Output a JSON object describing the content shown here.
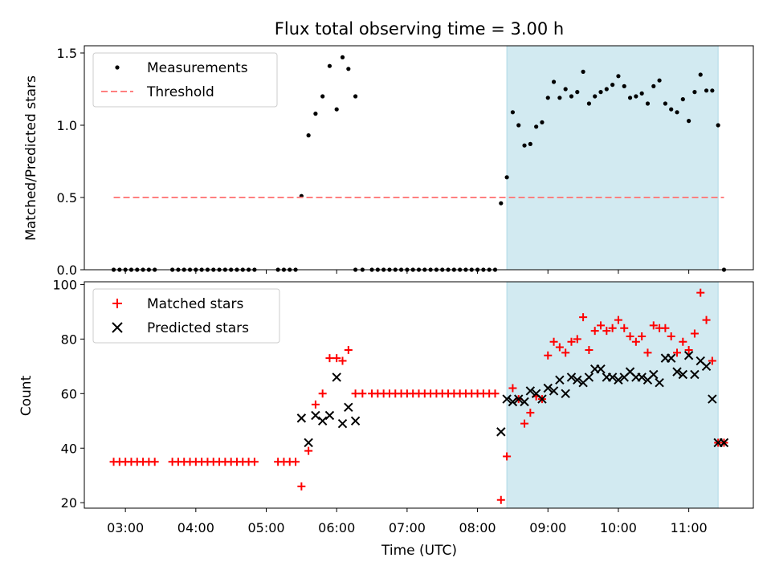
{
  "chart_data": [
    {
      "type": "scatter",
      "title": "Flux total observing time = 3.00 h",
      "ylabel": "Matched/Predicted stars",
      "xlabel": "",
      "xlim": [
        "02:25",
        "11:55"
      ],
      "ylim": [
        0,
        1.55
      ],
      "yticks": [
        "0.0",
        "0.5",
        "1.0",
        "1.5"
      ],
      "legend_position": "top-left",
      "highlight_span": [
        "08:25",
        "11:25"
      ],
      "highlight_color": "#add8e6",
      "series": [
        {
          "name": "Measurements",
          "kind": "points",
          "color": "#000000",
          "points": [
            [
              "02:50",
              0
            ],
            [
              "02:55",
              0
            ],
            [
              "03:00",
              0
            ],
            [
              "03:05",
              0
            ],
            [
              "03:10",
              0
            ],
            [
              "03:15",
              0
            ],
            [
              "03:20",
              0
            ],
            [
              "03:25",
              0
            ],
            [
              "03:40",
              0
            ],
            [
              "03:45",
              0
            ],
            [
              "03:50",
              0
            ],
            [
              "03:55",
              0
            ],
            [
              "04:00",
              0
            ],
            [
              "04:05",
              0
            ],
            [
              "04:10",
              0
            ],
            [
              "04:15",
              0
            ],
            [
              "04:20",
              0
            ],
            [
              "04:25",
              0
            ],
            [
              "04:30",
              0
            ],
            [
              "04:35",
              0
            ],
            [
              "04:40",
              0
            ],
            [
              "04:45",
              0
            ],
            [
              "04:50",
              0
            ],
            [
              "05:10",
              0
            ],
            [
              "05:15",
              0
            ],
            [
              "05:20",
              0
            ],
            [
              "05:25",
              0
            ],
            [
              "05:30",
              0.51
            ],
            [
              "05:36",
              0.93
            ],
            [
              "05:42",
              1.08
            ],
            [
              "05:48",
              1.2
            ],
            [
              "05:54",
              1.41
            ],
            [
              "06:00",
              1.11
            ],
            [
              "06:05",
              1.47
            ],
            [
              "06:10",
              1.39
            ],
            [
              "06:16",
              1.2
            ],
            [
              "06:16",
              0
            ],
            [
              "06:22",
              0
            ],
            [
              "06:30",
              0
            ],
            [
              "06:35",
              0
            ],
            [
              "06:40",
              0
            ],
            [
              "06:45",
              0
            ],
            [
              "06:50",
              0
            ],
            [
              "06:55",
              0
            ],
            [
              "07:00",
              0
            ],
            [
              "07:05",
              0
            ],
            [
              "07:10",
              0
            ],
            [
              "07:15",
              0
            ],
            [
              "07:20",
              0
            ],
            [
              "07:25",
              0
            ],
            [
              "07:30",
              0
            ],
            [
              "07:35",
              0
            ],
            [
              "07:40",
              0
            ],
            [
              "07:45",
              0
            ],
            [
              "07:50",
              0
            ],
            [
              "07:55",
              0
            ],
            [
              "08:00",
              0
            ],
            [
              "08:05",
              0
            ],
            [
              "08:10",
              0
            ],
            [
              "08:15",
              0
            ],
            [
              "08:20",
              0.46
            ],
            [
              "08:25",
              0.64
            ],
            [
              "08:30",
              1.09
            ],
            [
              "08:35",
              1.0
            ],
            [
              "08:40",
              0.86
            ],
            [
              "08:45",
              0.87
            ],
            [
              "08:50",
              0.99
            ],
            [
              "08:55",
              1.02
            ],
            [
              "09:00",
              1.19
            ],
            [
              "09:05",
              1.3
            ],
            [
              "09:10",
              1.19
            ],
            [
              "09:15",
              1.25
            ],
            [
              "09:20",
              1.2
            ],
            [
              "09:25",
              1.23
            ],
            [
              "09:30",
              1.37
            ],
            [
              "09:35",
              1.15
            ],
            [
              "09:40",
              1.2
            ],
            [
              "09:45",
              1.23
            ],
            [
              "09:50",
              1.25
            ],
            [
              "09:55",
              1.28
            ],
            [
              "10:00",
              1.34
            ],
            [
              "10:05",
              1.27
            ],
            [
              "10:10",
              1.19
            ],
            [
              "10:15",
              1.2
            ],
            [
              "10:20",
              1.22
            ],
            [
              "10:25",
              1.15
            ],
            [
              "10:30",
              1.27
            ],
            [
              "10:35",
              1.31
            ],
            [
              "10:40",
              1.15
            ],
            [
              "10:45",
              1.11
            ],
            [
              "10:50",
              1.09
            ],
            [
              "10:55",
              1.18
            ],
            [
              "11:00",
              1.03
            ],
            [
              "11:05",
              1.23
            ],
            [
              "11:10",
              1.35
            ],
            [
              "11:15",
              1.24
            ],
            [
              "11:20",
              1.24
            ],
            [
              "11:25",
              1.0
            ],
            [
              "11:30",
              0
            ]
          ]
        },
        {
          "name": "Threshold",
          "kind": "dashed-line",
          "color": "#ff8080",
          "points": [
            [
              "02:50",
              0.5
            ],
            [
              "11:30",
              0.5
            ]
          ]
        }
      ]
    },
    {
      "type": "scatter",
      "title": "",
      "ylabel": "Count",
      "xlabel": "Time (UTC)",
      "xlim": [
        "02:25",
        "11:55"
      ],
      "ylim": [
        18,
        101
      ],
      "yticks": [
        "20",
        "40",
        "60",
        "80",
        "100"
      ],
      "xticks": [
        "03:00",
        "04:00",
        "05:00",
        "06:00",
        "07:00",
        "08:00",
        "09:00",
        "10:00",
        "11:00"
      ],
      "legend_position": "top-left",
      "highlight_span": [
        "08:25",
        "11:25"
      ],
      "highlight_color": "#add8e6",
      "series": [
        {
          "name": "Matched stars",
          "kind": "plus",
          "color": "#ff0000",
          "points": [
            [
              "02:50",
              35
            ],
            [
              "02:55",
              35
            ],
            [
              "03:00",
              35
            ],
            [
              "03:05",
              35
            ],
            [
              "03:10",
              35
            ],
            [
              "03:15",
              35
            ],
            [
              "03:20",
              35
            ],
            [
              "03:25",
              35
            ],
            [
              "03:40",
              35
            ],
            [
              "03:45",
              35
            ],
            [
              "03:50",
              35
            ],
            [
              "03:55",
              35
            ],
            [
              "04:00",
              35
            ],
            [
              "04:05",
              35
            ],
            [
              "04:10",
              35
            ],
            [
              "04:15",
              35
            ],
            [
              "04:20",
              35
            ],
            [
              "04:25",
              35
            ],
            [
              "04:30",
              35
            ],
            [
              "04:35",
              35
            ],
            [
              "04:40",
              35
            ],
            [
              "04:45",
              35
            ],
            [
              "04:50",
              35
            ],
            [
              "05:10",
              35
            ],
            [
              "05:15",
              35
            ],
            [
              "05:20",
              35
            ],
            [
              "05:25",
              35
            ],
            [
              "05:30",
              26
            ],
            [
              "05:36",
              39
            ],
            [
              "05:42",
              56
            ],
            [
              "05:48",
              60
            ],
            [
              "05:54",
              73
            ],
            [
              "06:00",
              73
            ],
            [
              "06:05",
              72
            ],
            [
              "06:10",
              76
            ],
            [
              "06:16",
              60
            ],
            [
              "06:22",
              60
            ],
            [
              "06:30",
              60
            ],
            [
              "06:35",
              60
            ],
            [
              "06:40",
              60
            ],
            [
              "06:45",
              60
            ],
            [
              "06:50",
              60
            ],
            [
              "06:55",
              60
            ],
            [
              "07:00",
              60
            ],
            [
              "07:05",
              60
            ],
            [
              "07:10",
              60
            ],
            [
              "07:15",
              60
            ],
            [
              "07:20",
              60
            ],
            [
              "07:25",
              60
            ],
            [
              "07:30",
              60
            ],
            [
              "07:35",
              60
            ],
            [
              "07:40",
              60
            ],
            [
              "07:45",
              60
            ],
            [
              "07:50",
              60
            ],
            [
              "07:55",
              60
            ],
            [
              "08:00",
              60
            ],
            [
              "08:05",
              60
            ],
            [
              "08:10",
              60
            ],
            [
              "08:15",
              60
            ],
            [
              "08:20",
              21
            ],
            [
              "08:25",
              37
            ],
            [
              "08:30",
              62
            ],
            [
              "08:35",
              58
            ],
            [
              "08:40",
              49
            ],
            [
              "08:45",
              53
            ],
            [
              "08:50",
              59
            ],
            [
              "08:55",
              58
            ],
            [
              "09:00",
              74
            ],
            [
              "09:05",
              79
            ],
            [
              "09:10",
              77
            ],
            [
              "09:15",
              75
            ],
            [
              "09:20",
              79
            ],
            [
              "09:25",
              80
            ],
            [
              "09:30",
              88
            ],
            [
              "09:35",
              76
            ],
            [
              "09:40",
              83
            ],
            [
              "09:45",
              85
            ],
            [
              "09:50",
              83
            ],
            [
              "09:55",
              84
            ],
            [
              "10:00",
              87
            ],
            [
              "10:05",
              84
            ],
            [
              "10:10",
              81
            ],
            [
              "10:15",
              79
            ],
            [
              "10:20",
              81
            ],
            [
              "10:25",
              75
            ],
            [
              "10:30",
              85
            ],
            [
              "10:35",
              84
            ],
            [
              "10:40",
              84
            ],
            [
              "10:45",
              81
            ],
            [
              "10:50",
              75
            ],
            [
              "10:55",
              79
            ],
            [
              "11:00",
              76
            ],
            [
              "11:05",
              82
            ],
            [
              "11:10",
              97
            ],
            [
              "11:15",
              87
            ],
            [
              "11:20",
              72
            ],
            [
              "11:25",
              42
            ],
            [
              "11:30",
              42
            ]
          ]
        },
        {
          "name": "Predicted stars",
          "kind": "x",
          "color": "#000000",
          "points": [
            [
              "05:30",
              51
            ],
            [
              "05:36",
              42
            ],
            [
              "05:42",
              52
            ],
            [
              "05:48",
              50
            ],
            [
              "05:54",
              52
            ],
            [
              "06:00",
              66
            ],
            [
              "06:05",
              49
            ],
            [
              "06:10",
              55
            ],
            [
              "06:16",
              50
            ],
            [
              "08:20",
              46
            ],
            [
              "08:25",
              58
            ],
            [
              "08:30",
              57
            ],
            [
              "08:35",
              58
            ],
            [
              "08:40",
              57
            ],
            [
              "08:45",
              61
            ],
            [
              "08:50",
              60
            ],
            [
              "08:55",
              58
            ],
            [
              "09:00",
              62
            ],
            [
              "09:05",
              61
            ],
            [
              "09:10",
              65
            ],
            [
              "09:15",
              60
            ],
            [
              "09:20",
              66
            ],
            [
              "09:25",
              65
            ],
            [
              "09:30",
              64
            ],
            [
              "09:35",
              66
            ],
            [
              "09:40",
              69
            ],
            [
              "09:45",
              69
            ],
            [
              "09:50",
              66
            ],
            [
              "09:55",
              66
            ],
            [
              "10:00",
              65
            ],
            [
              "10:05",
              66
            ],
            [
              "10:10",
              68
            ],
            [
              "10:15",
              66
            ],
            [
              "10:20",
              66
            ],
            [
              "10:25",
              65
            ],
            [
              "10:30",
              67
            ],
            [
              "10:35",
              64
            ],
            [
              "10:40",
              73
            ],
            [
              "10:45",
              73
            ],
            [
              "10:50",
              68
            ],
            [
              "10:55",
              67
            ],
            [
              "11:00",
              74
            ],
            [
              "11:05",
              67
            ],
            [
              "11:10",
              72
            ],
            [
              "11:15",
              70
            ],
            [
              "11:20",
              58
            ],
            [
              "11:25",
              42
            ],
            [
              "11:30",
              42
            ]
          ]
        }
      ]
    }
  ]
}
